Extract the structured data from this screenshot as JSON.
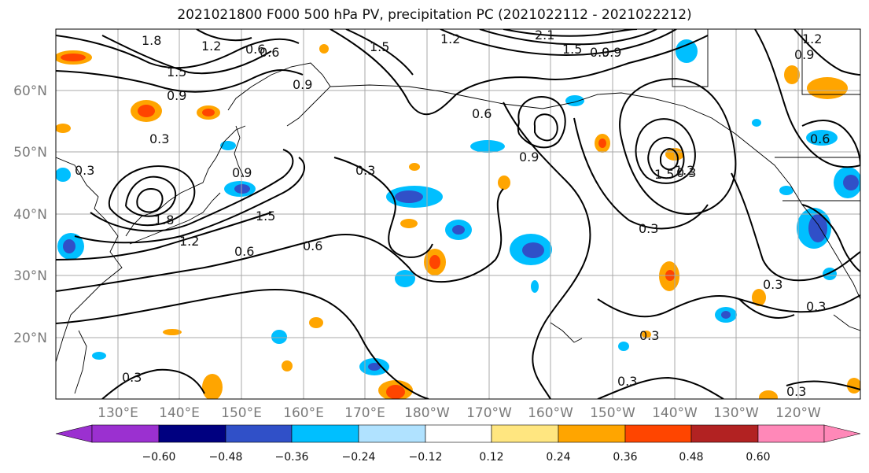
{
  "title": "2021021800 F000 500 hPa PV, precipitation PC (2021022112 - 2021022212)",
  "lon_ticks": [
    "130°E",
    "140°E",
    "150°E",
    "160°E",
    "170°E",
    "180°W",
    "170°W",
    "160°W",
    "150°W",
    "140°W",
    "130°W",
    "120°W"
  ],
  "lat_ticks": [
    "60°N",
    "50°N",
    "40°N",
    "30°N",
    "20°N"
  ],
  "colorbar": {
    "colors": [
      "#9b30d0",
      "#000080",
      "#3050c8",
      "#00bfff",
      "#b0e2ff",
      "#ffffff",
      "#ffe680",
      "#ffa500",
      "#ff4500",
      "#b22222",
      "#ff88b8"
    ],
    "labels": [
      "−0.60",
      "−0.48",
      "−0.36",
      "−0.24",
      "−0.12",
      "0.12",
      "0.24",
      "0.36",
      "0.48",
      "0.60"
    ]
  },
  "contour_labels": [
    "1.8",
    "1.2",
    "0.6",
    "1.5",
    "0.9",
    "0.9",
    "1.5",
    "1.2",
    "2.1",
    "1.5",
    "0.9",
    "0.9",
    "0.3",
    "0.6",
    "0.3",
    "0.6",
    "0.3",
    "0.9",
    "1.8",
    "1.2",
    "1.5",
    "0.6",
    "0.6",
    "0.9",
    "1.5",
    "1.2",
    "0.3",
    "0.3",
    "0.3",
    "0.3",
    "0.3",
    "0.3",
    "0.3",
    "0.3",
    "0.6",
    "1.2",
    "0.9"
  ]
}
